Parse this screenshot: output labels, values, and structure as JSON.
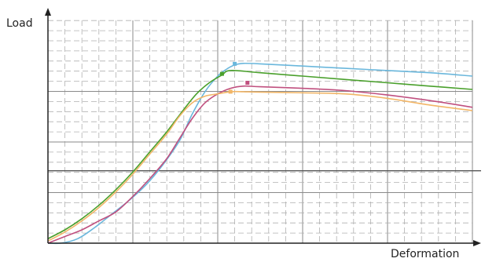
{
  "chart_data": {
    "type": "line",
    "title": "",
    "xlabel": "Deformation",
    "ylabel": "Load",
    "xlim": [
      0,
      100
    ],
    "ylim": [
      0,
      100
    ],
    "grid": true,
    "legend": "none",
    "series": [
      {
        "color": "#6ab7dc",
        "points": [
          [
            0,
            0
          ],
          [
            3,
            0
          ],
          [
            7,
            2
          ],
          [
            11,
            7
          ],
          [
            15,
            13
          ],
          [
            19,
            19
          ],
          [
            23,
            26
          ],
          [
            27,
            35
          ],
          [
            31,
            46
          ],
          [
            34,
            58
          ],
          [
            37,
            68
          ],
          [
            40,
            75
          ],
          [
            42,
            78
          ],
          [
            44,
            80
          ],
          [
            46,
            80.7
          ],
          [
            50,
            80.5
          ],
          [
            60,
            79.5
          ],
          [
            70,
            78.5
          ],
          [
            80,
            77.5
          ],
          [
            90,
            76.5
          ],
          [
            100,
            75
          ]
        ],
        "peak": [
          44,
          80.5
        ]
      },
      {
        "color": "#4aa02c",
        "points": [
          [
            0,
            2
          ],
          [
            4,
            6
          ],
          [
            8,
            11
          ],
          [
            12,
            17
          ],
          [
            16,
            24
          ],
          [
            20,
            32
          ],
          [
            24,
            41
          ],
          [
            28,
            50
          ],
          [
            32,
            60
          ],
          [
            35,
            67
          ],
          [
            38,
            72
          ],
          [
            41,
            75.5
          ],
          [
            43,
            77.5
          ],
          [
            50,
            76.5
          ],
          [
            60,
            75
          ],
          [
            70,
            73.5
          ],
          [
            80,
            72
          ],
          [
            90,
            70.5
          ],
          [
            100,
            69
          ]
        ],
        "peak": [
          41,
          76
        ]
      },
      {
        "color": "#c0507f",
        "points": [
          [
            0,
            0
          ],
          [
            4,
            3
          ],
          [
            8,
            6
          ],
          [
            12,
            10
          ],
          [
            16,
            14
          ],
          [
            20,
            21
          ],
          [
            24,
            29
          ],
          [
            28,
            38
          ],
          [
            31,
            47
          ],
          [
            34,
            56
          ],
          [
            37,
            63
          ],
          [
            40,
            67
          ],
          [
            43,
            69.5
          ],
          [
            46,
            70.5
          ],
          [
            50,
            70.2
          ],
          [
            60,
            69.5
          ],
          [
            70,
            68.5
          ],
          [
            80,
            66.5
          ],
          [
            90,
            64
          ],
          [
            100,
            61
          ]
        ],
        "peak": [
          47,
          72
        ]
      },
      {
        "color": "#f2b667",
        "points": [
          [
            0,
            1
          ],
          [
            4,
            5
          ],
          [
            8,
            10
          ],
          [
            12,
            16
          ],
          [
            16,
            23
          ],
          [
            20,
            31
          ],
          [
            24,
            40
          ],
          [
            28,
            49
          ],
          [
            31,
            57
          ],
          [
            34,
            63
          ],
          [
            37,
            66
          ],
          [
            40,
            67
          ],
          [
            43,
            68
          ],
          [
            46,
            68
          ],
          [
            50,
            67.8
          ],
          [
            60,
            67.5
          ],
          [
            70,
            67
          ],
          [
            80,
            65
          ],
          [
            90,
            62
          ],
          [
            100,
            59.5
          ]
        ],
        "peak": [
          43,
          68
        ]
      }
    ]
  }
}
